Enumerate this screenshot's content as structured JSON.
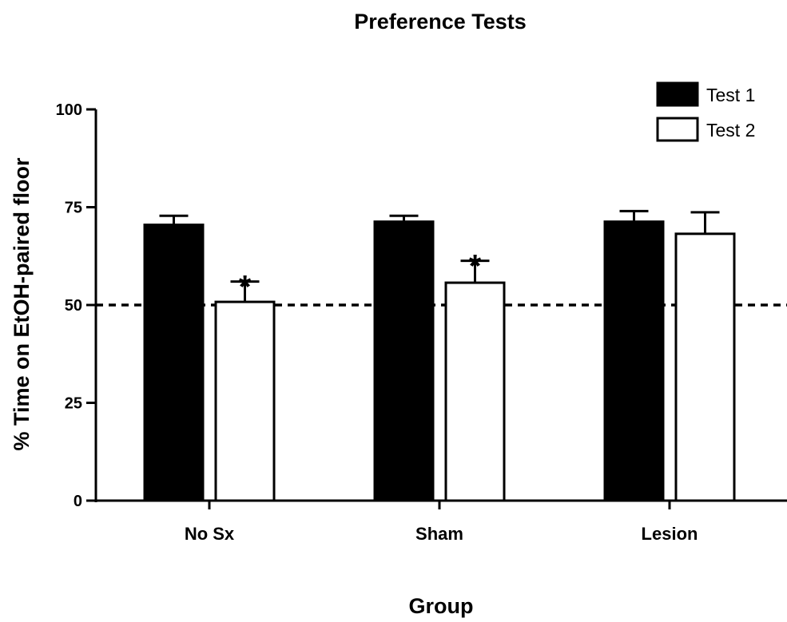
{
  "chart_data": {
    "type": "bar",
    "title": "Preference Tests",
    "xlabel": "Group",
    "ylabel": "% Time on EtOH-paired floor",
    "categories": [
      "No Sx",
      "Sham",
      "Lesion"
    ],
    "ylim": [
      0,
      100
    ],
    "yticks": [
      "0",
      "25",
      "50",
      "75",
      "100"
    ],
    "reference_line": 50,
    "legend_position": "top-right",
    "grid": false,
    "series": [
      {
        "name": "Test 1",
        "fill": "#000000",
        "values": [
          70.5,
          71.3,
          71.3
        ],
        "errors": [
          2.3,
          1.5,
          2.7
        ],
        "annotations": [
          "",
          "",
          ""
        ]
      },
      {
        "name": "Test 2",
        "fill": "#ffffff",
        "values": [
          50.8,
          55.7,
          68.2
        ],
        "errors": [
          5.2,
          5.6,
          5.5
        ],
        "annotations": [
          "*",
          "*",
          ""
        ]
      }
    ]
  }
}
